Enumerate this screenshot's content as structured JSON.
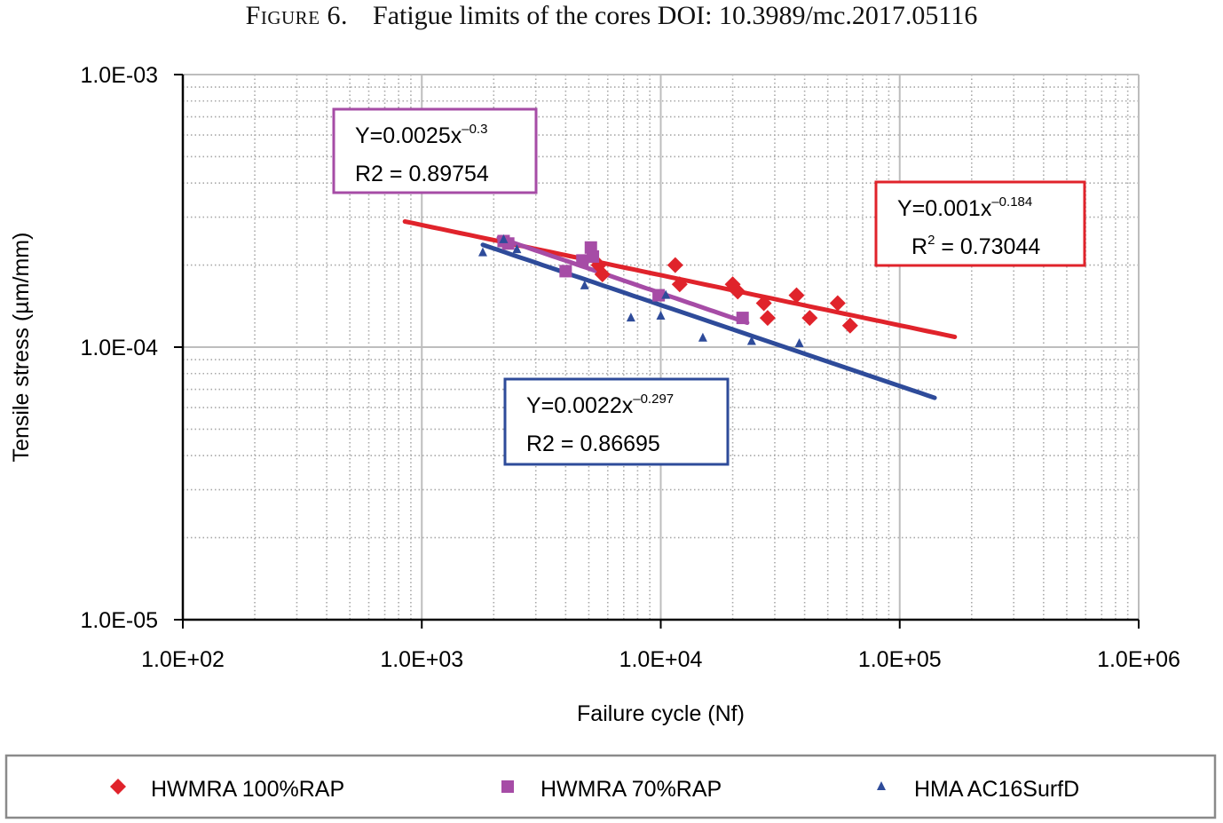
{
  "caption": {
    "label": "Figure 6.",
    "text": "Fatigue limits of the cores DOI: 10.3989/mc.2017.05116"
  },
  "chart_data": {
    "type": "scatter",
    "title": "",
    "xlabel": "Failure cycle (Nf)",
    "ylabel": "Tensile stress (µm/mm)",
    "x_scale": "log",
    "y_scale": "log",
    "xlim": [
      100,
      1000000
    ],
    "ylim": [
      1e-05,
      0.001
    ],
    "x_ticks": [
      "1.0E+02",
      "1.0E+03",
      "1.0E+04",
      "1.0E+05",
      "1.0E+06"
    ],
    "y_ticks": [
      "1.0E-05",
      "1.0E-04",
      "1.0E-03"
    ],
    "grid": true,
    "legend_position": "bottom",
    "series": [
      {
        "name": "HWMRA 100%RAP",
        "color": "#e0232b",
        "marker": "diamond",
        "points": [
          [
            5500,
            0.0002
          ],
          [
            5700,
            0.000185
          ],
          [
            11500,
            0.0002
          ],
          [
            12000,
            0.00017
          ],
          [
            20000,
            0.00017
          ],
          [
            21000,
            0.00016
          ],
          [
            27000,
            0.000145
          ],
          [
            28000,
            0.000128
          ],
          [
            37000,
            0.000155
          ],
          [
            42000,
            0.000128
          ],
          [
            55000,
            0.000145
          ],
          [
            62000,
            0.00012
          ]
        ],
        "trendline": {
          "coef": 0.001,
          "exponent": -0.184,
          "x_range": [
            850,
            170000
          ]
        },
        "equation": {
          "line1_prefix": "Y=0.001x",
          "line1_sup": "-0.184",
          "line2_prefix": "R",
          "line2_sup": "2",
          "line2_suffix": " = 0.73044"
        }
      },
      {
        "name": "HWMRA 70%RAP",
        "color": "#a64ca6",
        "marker": "square",
        "points": [
          [
            2200,
            0.000245
          ],
          [
            2300,
            0.00024
          ],
          [
            4000,
            0.00019
          ],
          [
            4700,
            0.000208
          ],
          [
            5100,
            0.000232
          ],
          [
            5200,
            0.000215
          ],
          [
            9800,
            0.000155
          ],
          [
            22000,
            0.000128
          ]
        ],
        "trendline": {
          "coef": 0.0025,
          "exponent": -0.3,
          "x_range": [
            2100,
            23000
          ]
        },
        "equation": {
          "line1_prefix": "Y=0.0025x",
          "line1_sup": "-0.3",
          "line2_prefix": "R2 = 0.89754"
        }
      },
      {
        "name": "HMA AC16SurfD",
        "color": "#2e4b9a",
        "marker": "triangle",
        "points": [
          [
            1800,
            0.000222
          ],
          [
            2200,
            0.000248
          ],
          [
            2500,
            0.000228
          ],
          [
            4800,
            0.000168
          ],
          [
            7500,
            0.000128
          ],
          [
            10000,
            0.00013
          ],
          [
            10500,
            0.000155
          ],
          [
            15000,
            0.000108
          ],
          [
            24000,
            0.000105
          ],
          [
            38000,
            0.000103
          ]
        ],
        "trendline": {
          "coef": 0.0022,
          "exponent": -0.297,
          "x_range": [
            1800,
            140000
          ]
        },
        "equation": {
          "line1_prefix": "Y=0.0022x",
          "line1_sup": "-0.297",
          "line2_prefix": "R2 = 0.86695"
        }
      }
    ]
  }
}
